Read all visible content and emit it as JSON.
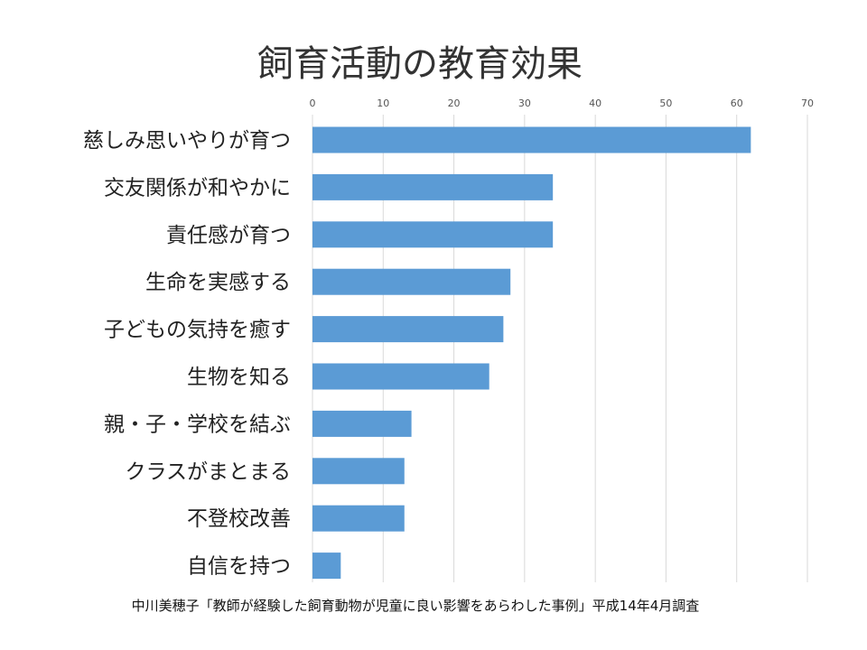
{
  "chart_data": {
    "type": "bar",
    "orientation": "horizontal",
    "title": "飼育活動の教育効果",
    "categories": [
      "慈しみ思いやりが育つ",
      "交友関係が和やかに",
      "責任感が育つ",
      "生命を実感する",
      "子どもの気持を癒す",
      "生物を知る",
      "親・子・学校を結ぶ",
      "クラスがまとまる",
      "不登校改善",
      "自信を持つ"
    ],
    "values": [
      62,
      34,
      34,
      28,
      27,
      25,
      14,
      13,
      13,
      4
    ],
    "xlim": [
      0,
      70
    ],
    "xticks": [
      "0",
      "10",
      "20",
      "30",
      "40",
      "50",
      "60",
      "70"
    ],
    "axis_position": "top",
    "grid": true,
    "legend": "none",
    "bar_color": "#5b9bd5",
    "grid_color": "#d9d9d9",
    "source": "中川美穂子「教師が経験した飼育動物が児童に良い影響をあらわした事例」平成14年4月調査"
  }
}
